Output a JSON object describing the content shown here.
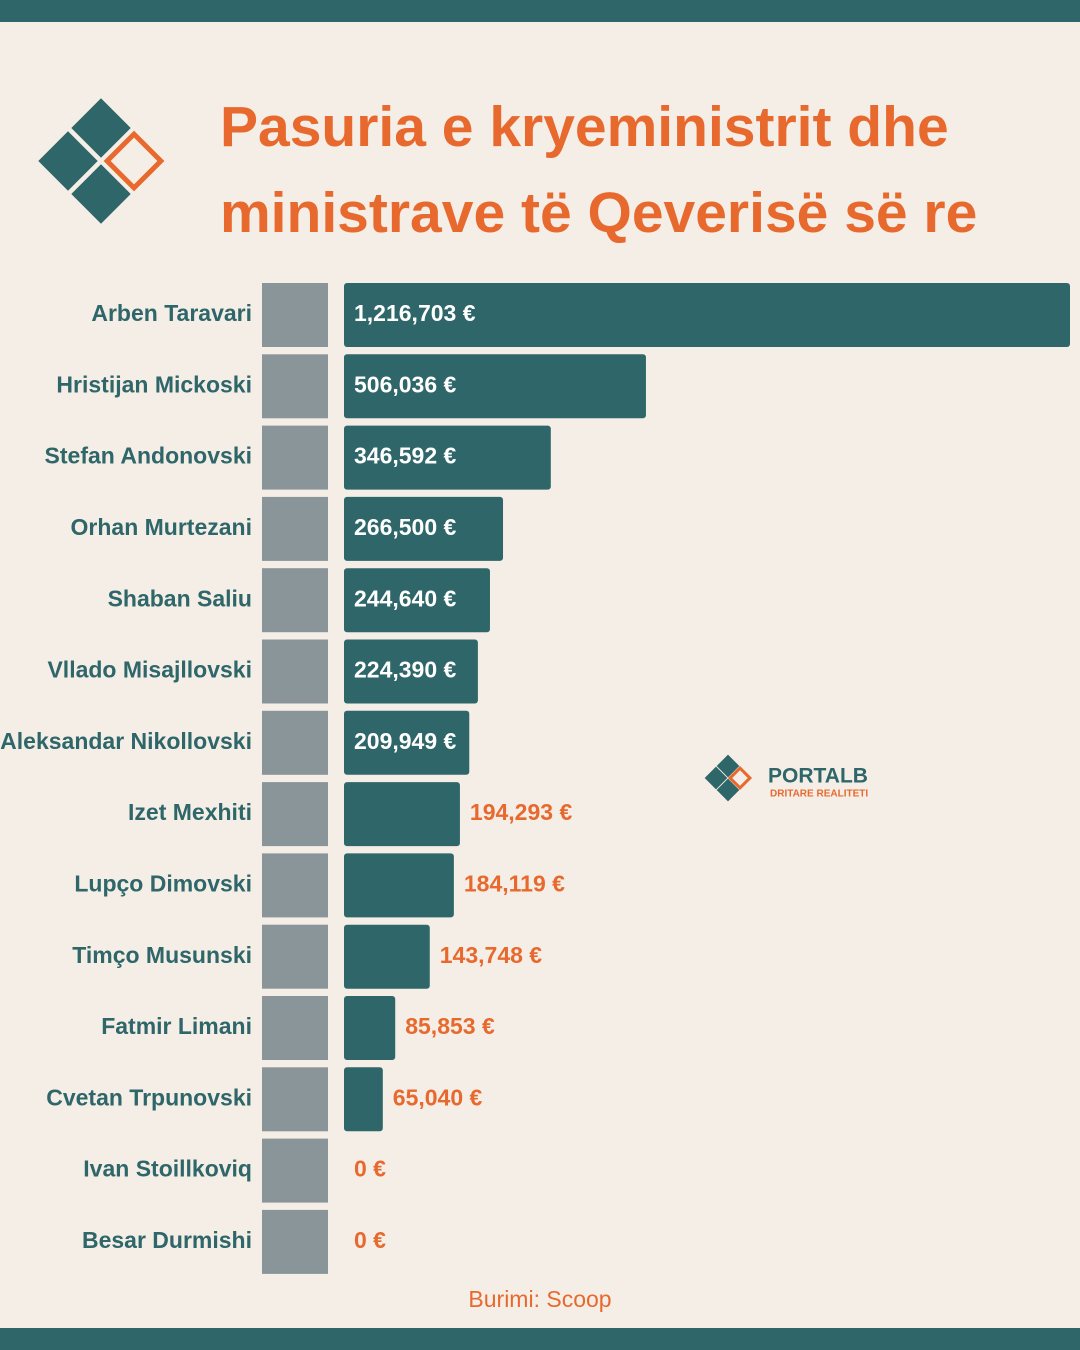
{
  "chart_data": {
    "type": "bar",
    "title": "Pasuria e kryeministrit dhe ministrave të Qeverisë së re",
    "categories": [
      "Arben Taravari",
      "Hristijan Mickoski",
      "Stefan Andonovski",
      "Orhan Murtezani",
      "Shaban Saliu",
      "Vllado Misajllovski",
      "Aleksandar Nikollovski",
      "Izet Mexhiti",
      "Lupço Dimovski",
      "Timço Musunski",
      "Fatmir Limani",
      "Cvetan Trpunovski",
      "Ivan Stoillkoviq",
      "Besar Durmishi"
    ],
    "values": [
      1216703,
      506036,
      346592,
      266500,
      244640,
      224390,
      209949,
      194293,
      184119,
      143748,
      85853,
      65040,
      0,
      0
    ],
    "value_labels": [
      "1,216,703 €",
      "506,036 €",
      "346,592 €",
      "266,500 €",
      "244,640 €",
      "224,390 €",
      "209,949 €",
      "194,293 €",
      "184,119 €",
      "143,748 €",
      "85,853 €",
      "65,040 €",
      "0 €",
      "0 €"
    ],
    "color": "#2e6669",
    "label_color": "#e8692e"
  },
  "brand": {
    "name": "PORTALB",
    "tagline": "DRITARE REALITETI"
  },
  "source": "Burimi: Scoop"
}
